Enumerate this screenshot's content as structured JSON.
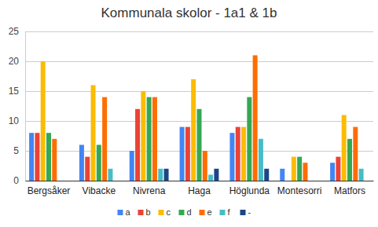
{
  "chart_data": {
    "type": "bar",
    "title": "Kommunala skolor - 1a1 & 1b",
    "categories": [
      "Bergsåker",
      "Vibacke",
      "Nivrena",
      "Haga",
      "Höglunda",
      "Montesorri",
      "Matfors"
    ],
    "series": [
      {
        "name": "a",
        "color": "#4285f4",
        "values": [
          8,
          6,
          5,
          9,
          8,
          2,
          3
        ]
      },
      {
        "name": "b",
        "color": "#ea4335",
        "values": [
          8,
          4,
          12,
          9,
          9,
          0,
          4
        ]
      },
      {
        "name": "c",
        "color": "#fbbc04",
        "values": [
          20,
          16,
          15,
          17,
          9,
          4,
          11
        ]
      },
      {
        "name": "d",
        "color": "#34a853",
        "values": [
          8,
          6,
          14,
          12,
          14,
          4,
          7
        ]
      },
      {
        "name": "e",
        "color": "#ff6d01",
        "values": [
          7,
          14,
          14,
          5,
          21,
          3,
          9
        ]
      },
      {
        "name": "f",
        "color": "#46bdc6",
        "values": [
          0,
          2,
          2,
          1,
          7,
          0,
          2
        ]
      },
      {
        "name": "-",
        "color": "#1c4587",
        "values": [
          0,
          0,
          2,
          2,
          2,
          0,
          0
        ]
      }
    ],
    "ylim": [
      0,
      25
    ],
    "yticks": [
      0,
      5,
      10,
      15,
      20,
      25
    ],
    "grid": true,
    "legend": "bottom"
  }
}
